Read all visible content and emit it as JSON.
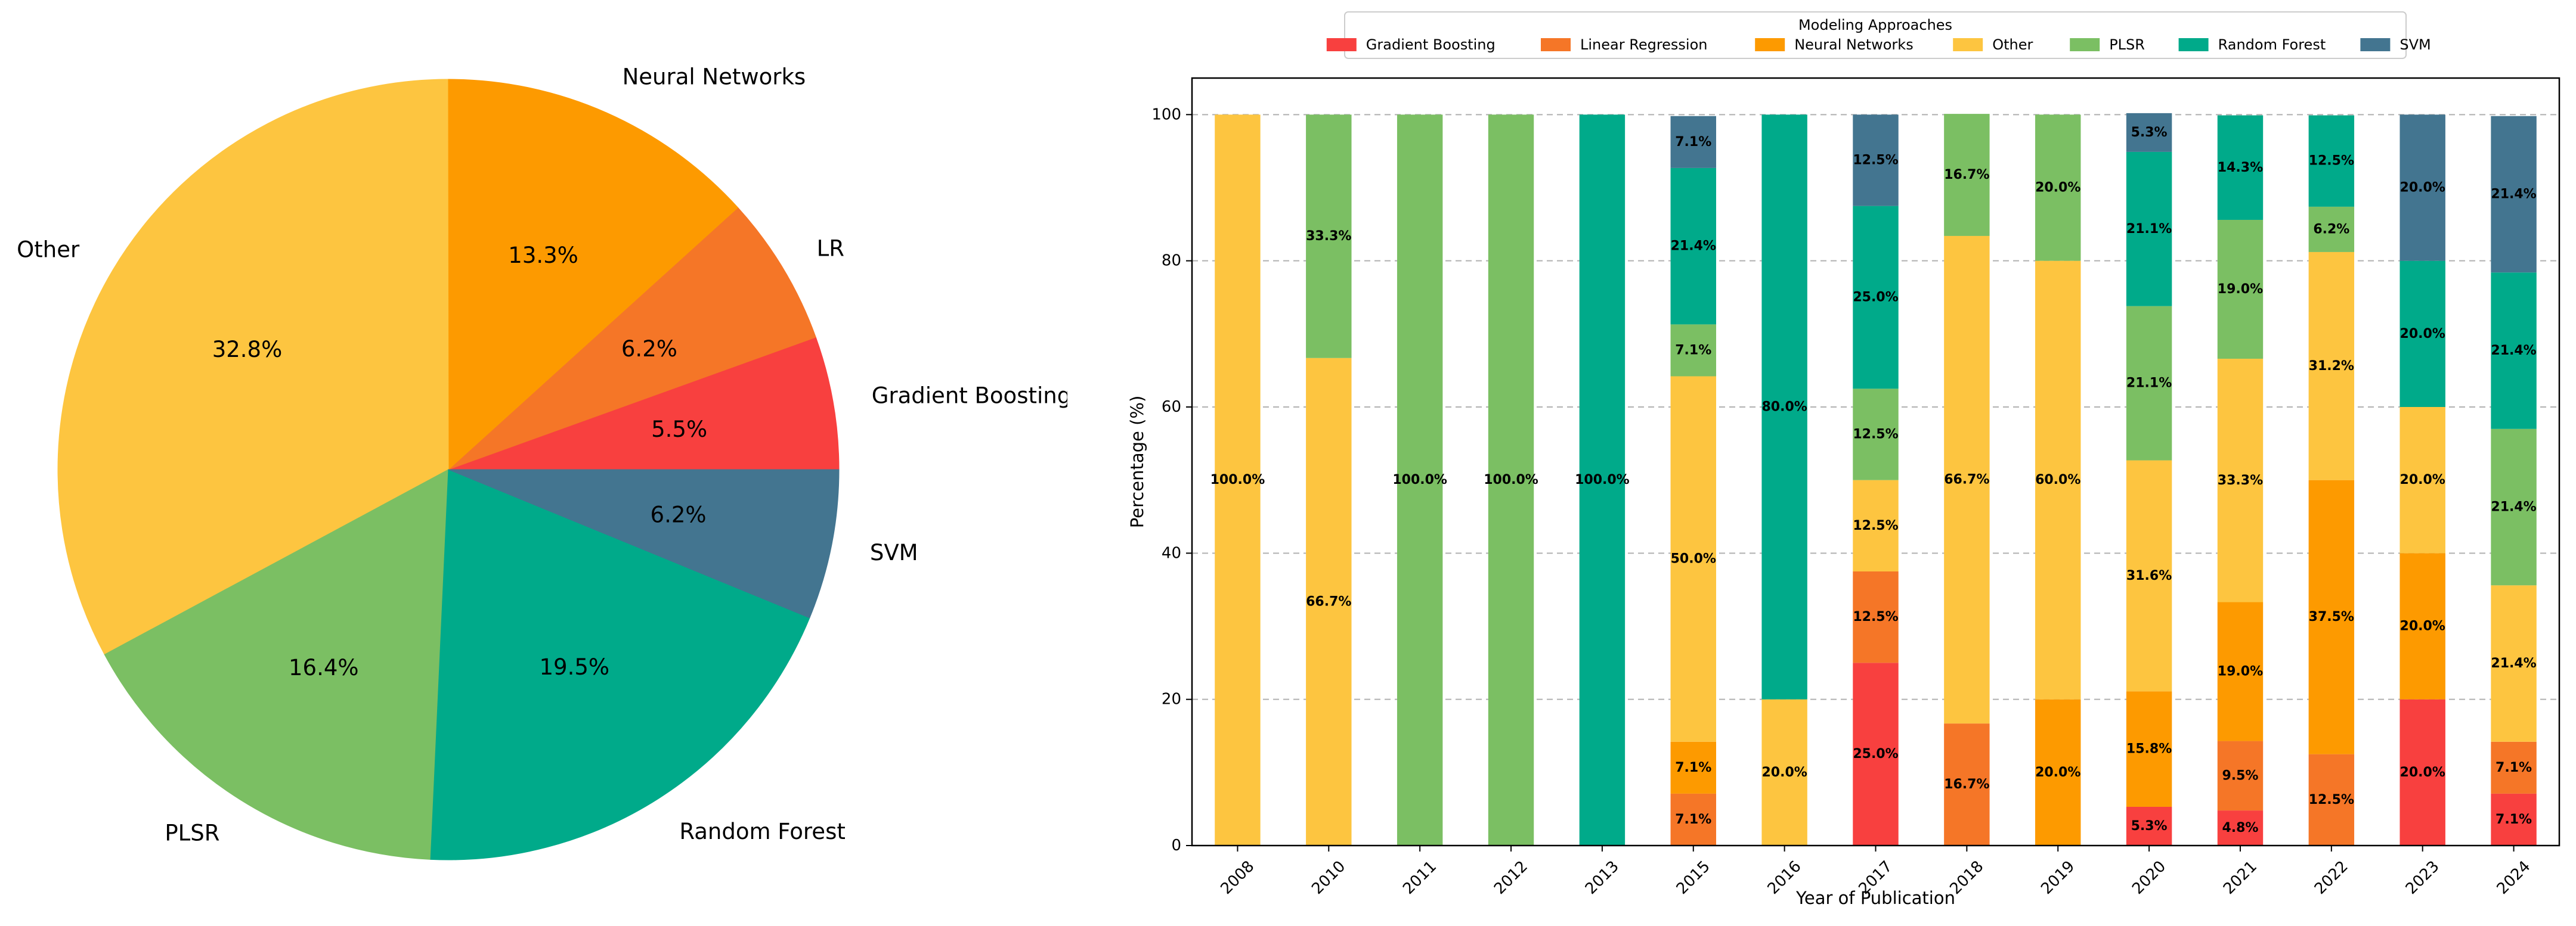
{
  "chart_data": [
    {
      "type": "pie",
      "labels": [
        "Gradient Boosting",
        "LR",
        "Neural Networks",
        "Other",
        "PLSR",
        "Random Forest",
        "SVM"
      ],
      "values": [
        5.5,
        6.2,
        13.3,
        32.8,
        16.4,
        19.5,
        6.2
      ],
      "pct_labels": [
        "5.5%",
        "6.2%",
        "13.3%",
        "32.8%",
        "16.4%",
        "19.5%",
        "6.2%"
      ],
      "colors": [
        "#f8403f",
        "#f57627",
        "#fd9a00",
        "#fdc540",
        "#7bbf63",
        "#00aa8a",
        "#437590"
      ],
      "start_angle": 0,
      "direction": "counterclockwise"
    },
    {
      "type": "bar",
      "stacked": true,
      "xlabel": "Year of Publication",
      "ylabel": "Percentage (%)",
      "ylim": [
        0,
        105
      ],
      "yticks": [
        0,
        20,
        40,
        60,
        80,
        100
      ],
      "grid": "y-dashed",
      "legend_title": "Modeling Approaches",
      "legend_position": "top-center",
      "categories": [
        "2008",
        "2010",
        "2011",
        "2012",
        "2013",
        "2015",
        "2016",
        "2017",
        "2018",
        "2019",
        "2020",
        "2021",
        "2022",
        "2023",
        "2024"
      ],
      "series": [
        {
          "name": "Gradient Boosting",
          "color": "#f8403f",
          "values": [
            0,
            0,
            0,
            0,
            0,
            0,
            0,
            25.0,
            0,
            0,
            5.3,
            4.8,
            0,
            20.0,
            7.1
          ]
        },
        {
          "name": "Linear Regression",
          "color": "#f57627",
          "values": [
            0,
            0,
            0,
            0,
            0,
            7.1,
            0,
            12.5,
            16.7,
            0,
            0,
            9.5,
            12.5,
            0,
            7.1
          ]
        },
        {
          "name": "Neural Networks",
          "color": "#fd9a00",
          "values": [
            0,
            0,
            0,
            0,
            0,
            7.1,
            0,
            0,
            0,
            20.0,
            15.8,
            19.0,
            37.5,
            20.0,
            0
          ]
        },
        {
          "name": "Other",
          "color": "#fdc540",
          "values": [
            100.0,
            66.7,
            0,
            0,
            0,
            50.0,
            20.0,
            12.5,
            66.7,
            60.0,
            31.6,
            33.3,
            31.2,
            20.0,
            21.4
          ]
        },
        {
          "name": "PLSR",
          "color": "#7bbf63",
          "values": [
            0,
            33.3,
            100.0,
            100.0,
            0,
            7.1,
            0,
            12.5,
            16.7,
            20.0,
            21.1,
            19.0,
            6.2,
            0,
            21.4
          ]
        },
        {
          "name": "Random Forest",
          "color": "#00aa8a",
          "values": [
            0,
            0,
            0,
            0,
            100.0,
            21.4,
            80.0,
            25.0,
            0,
            0,
            21.1,
            14.3,
            12.5,
            20.0,
            21.4
          ]
        },
        {
          "name": "SVM",
          "color": "#437590",
          "values": [
            0,
            0,
            0,
            0,
            0,
            7.1,
            0,
            12.5,
            0,
            0,
            5.3,
            0,
            0,
            20.0,
            21.4
          ]
        }
      ]
    }
  ]
}
